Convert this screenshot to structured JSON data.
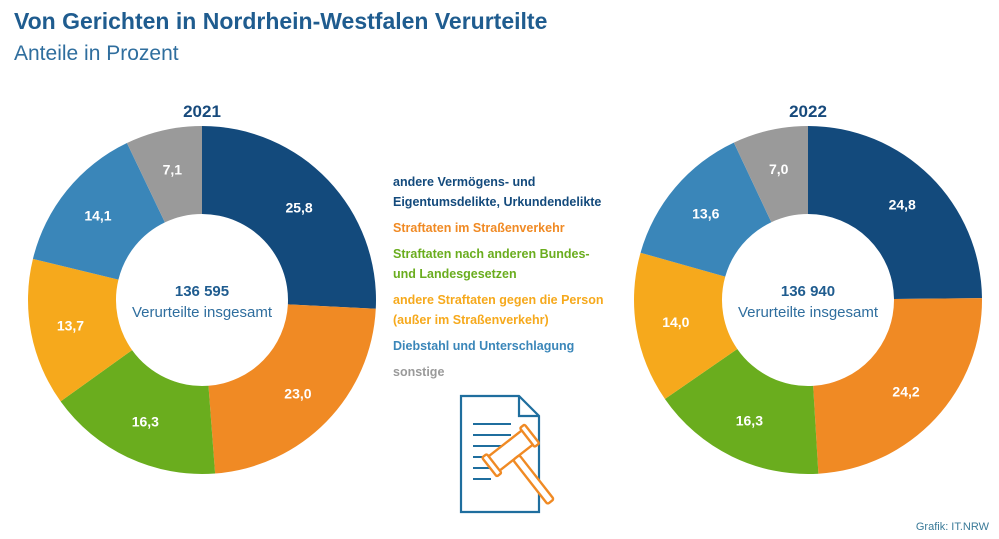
{
  "header": {
    "title": "Von Gerichten in Nordrhein-Westfalen Verurteilte",
    "subtitle": "Anteile in Prozent"
  },
  "legend": [
    {
      "lines": [
        "andere Vermögens- und",
        "Eigentumsdelikte, Urkundendelikte"
      ],
      "color": "#134a7c"
    },
    {
      "lines": [
        "Straftaten im Straßenverkehr"
      ],
      "color": "#f08a24"
    },
    {
      "lines": [
        "Straftaten nach anderen Bundes-",
        "und Landesgesetzen"
      ],
      "color": "#6aad1e"
    },
    {
      "lines": [
        "andere Straftaten gegen die Person",
        "(außer im Straßenverkehr)"
      ],
      "color": "#f6a91c"
    },
    {
      "lines": [
        "Diebstahl und Unterschlagung"
      ],
      "color": "#3a86b9"
    },
    {
      "lines": [
        "sonstige"
      ],
      "color": "#9a9a9a"
    }
  ],
  "icons": {
    "document": "court-document-gavel-icon"
  },
  "source": "Grafik: IT.NRW",
  "chart_data": [
    {
      "type": "pie",
      "title": "2021",
      "center_value": "136 595",
      "center_caption": "Verurteilte insgesamt",
      "categories": [
        "andere Vermögens- und Eigentumsdelikte, Urkundendelikte",
        "Straftaten im Straßenverkehr",
        "Straftaten nach anderen Bundes- und Landesgesetzen",
        "andere Straftaten gegen die Person (außer im Straßenverkehr)",
        "Diebstahl und Unterschlagung",
        "sonstige"
      ],
      "values": [
        25.8,
        23.0,
        16.3,
        13.7,
        14.1,
        7.1
      ],
      "labels": [
        "25,8",
        "23,0",
        "16,3",
        "13,7",
        "14,1",
        "7,1"
      ],
      "colors": [
        "#134a7c",
        "#f08a24",
        "#6aad1e",
        "#f6a91c",
        "#3a86b9",
        "#9a9a9a"
      ]
    },
    {
      "type": "pie",
      "title": "2022",
      "center_value": "136 940",
      "center_caption": "Verurteilte insgesamt",
      "categories": [
        "andere Vermögens- und Eigentumsdelikte, Urkundendelikte",
        "Straftaten im Straßenverkehr",
        "Straftaten nach anderen Bundes- und Landesgesetzen",
        "andere Straftaten gegen die Person (außer im Straßenverkehr)",
        "Diebstahl und Unterschlagung",
        "sonstige"
      ],
      "values": [
        24.8,
        24.2,
        16.3,
        14.0,
        13.6,
        7.0
      ],
      "labels": [
        "24,8",
        "24,2",
        "16,3",
        "14,0",
        "13,6",
        "7,0"
      ],
      "colors": [
        "#134a7c",
        "#f08a24",
        "#6aad1e",
        "#f6a91c",
        "#3a86b9",
        "#9a9a9a"
      ]
    }
  ]
}
